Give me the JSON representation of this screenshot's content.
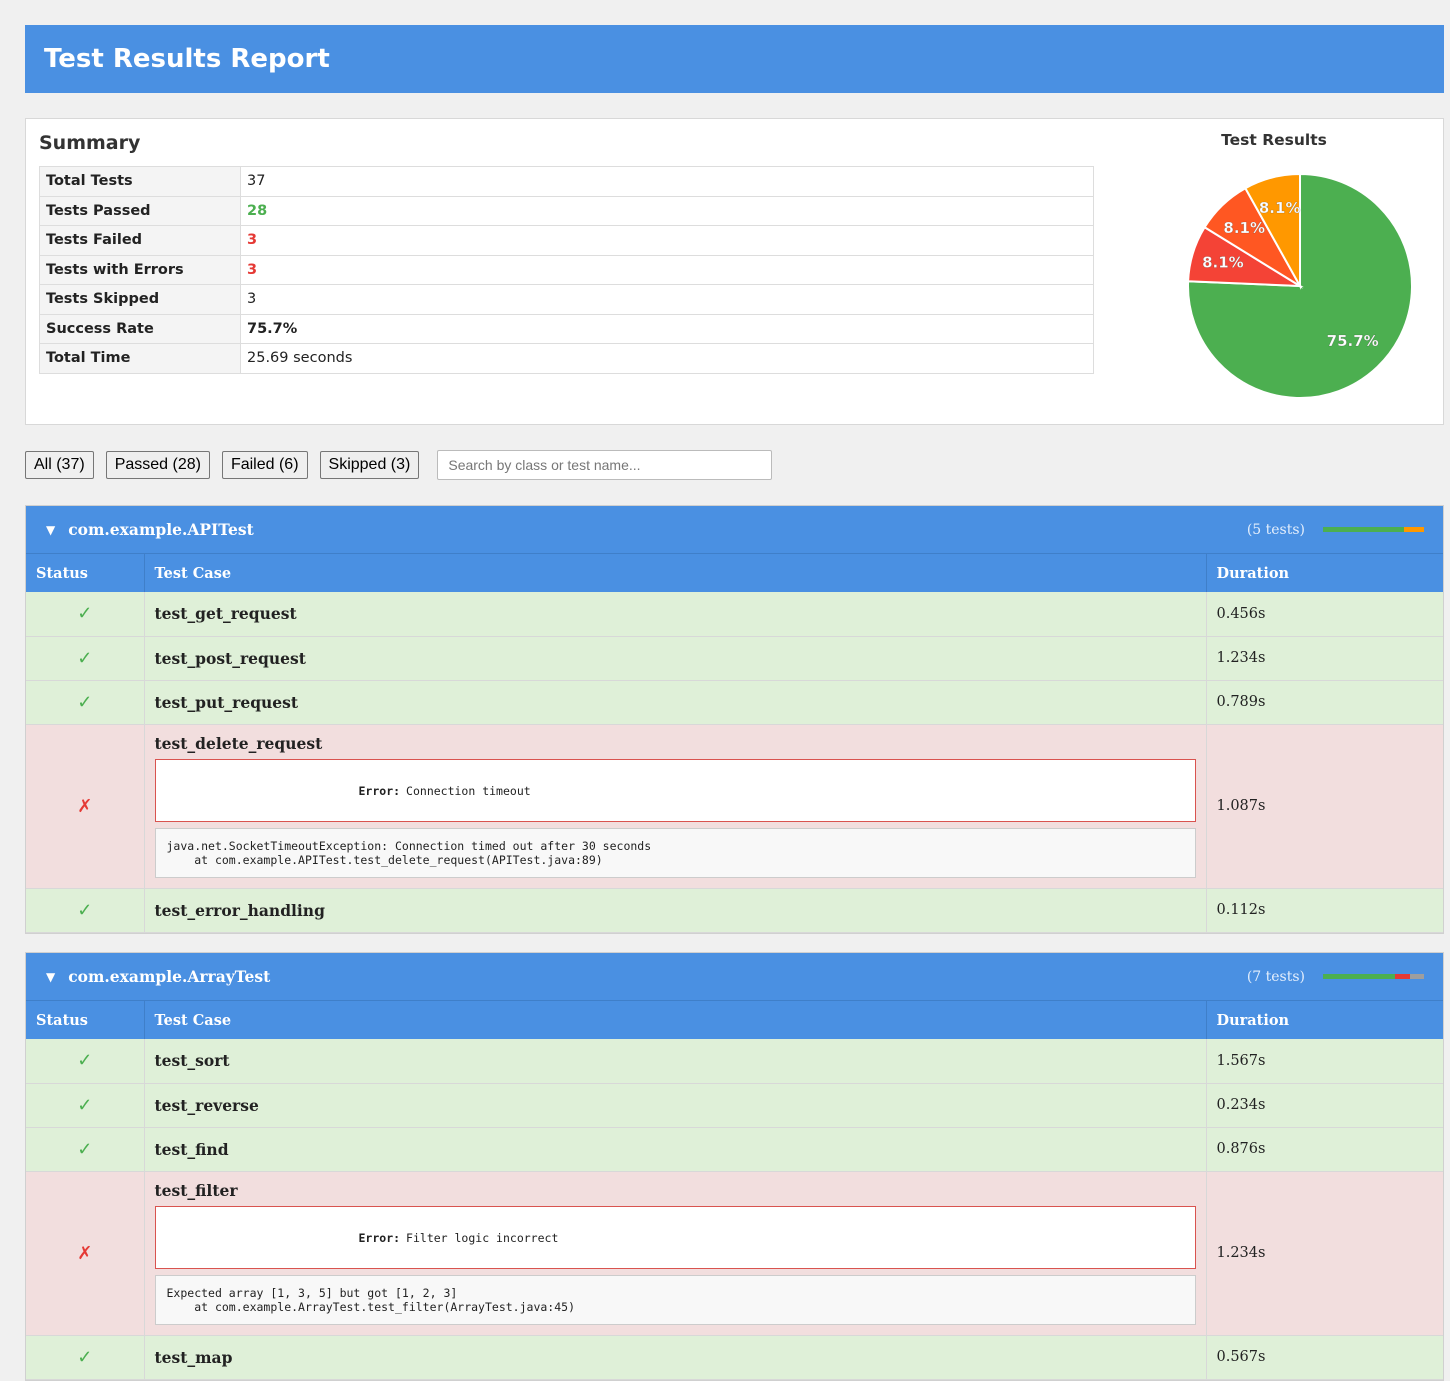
{
  "header": {
    "title": "Test Results Report"
  },
  "summary": {
    "title": "Summary",
    "rows": {
      "total": {
        "label": "Total Tests",
        "value": "37"
      },
      "passed": {
        "label": "Tests Passed",
        "value": "28"
      },
      "failed": {
        "label": "Tests Failed",
        "value": "3"
      },
      "errors": {
        "label": "Tests with Errors",
        "value": "3"
      },
      "skipped": {
        "label": "Tests Skipped",
        "value": "3"
      },
      "rate": {
        "label": "Success Rate",
        "value": "75.7%"
      },
      "time": {
        "label": "Total Time",
        "value": "25.69 seconds"
      }
    }
  },
  "chart_data": {
    "type": "pie",
    "title": "Test Results",
    "values": [
      28,
      3,
      3,
      3
    ],
    "labels": [
      "75.7%",
      "8.1%",
      "8.1%",
      "8.1%"
    ],
    "colors": [
      "#4caf50",
      "#f44336",
      "#ff5722",
      "#ff9800"
    ]
  },
  "filters": {
    "all": "All (37)",
    "passed": "Passed (28)",
    "failed": "Failed (6)",
    "skipped": "Skipped (3)",
    "search_placeholder": "Search by class or test name..."
  },
  "columns": {
    "status": "Status",
    "test_case": "Test Case",
    "duration": "Duration"
  },
  "icons": {
    "pass": "✓",
    "fail": "✗",
    "expand": "▼"
  },
  "suites": [
    {
      "name": "com.example.APITest",
      "count": "(5 tests)",
      "progress": {
        "pass": 0.8,
        "fail": 0.0,
        "error": 0.2,
        "skip": 0.0
      },
      "tests": [
        {
          "name": "test_get_request",
          "duration": "0.456s"
        },
        {
          "name": "test_post_request",
          "duration": "1.234s"
        },
        {
          "name": "test_put_request",
          "duration": "0.789s"
        },
        {
          "name": "test_delete_request",
          "duration": "1.087s",
          "error_label": "Error:",
          "error_message": "Connection timeout",
          "trace": "java.net.SocketTimeoutException: Connection timed out after 30 seconds\n    at com.example.APITest.test_delete_request(APITest.java:89)"
        },
        {
          "name": "test_error_handling",
          "duration": "0.112s"
        }
      ]
    },
    {
      "name": "com.example.ArrayTest",
      "count": "(7 tests)",
      "progress": {
        "pass": 0.714,
        "fail": 0.143,
        "error": 0.0,
        "skip": 0.143
      },
      "tests": [
        {
          "name": "test_sort",
          "duration": "1.567s"
        },
        {
          "name": "test_reverse",
          "duration": "0.234s"
        },
        {
          "name": "test_find",
          "duration": "0.876s"
        },
        {
          "name": "test_filter",
          "duration": "1.234s",
          "error_label": "Error:",
          "error_message": "Filter logic incorrect",
          "trace": "Expected array [1, 3, 5] but got [1, 2, 3]\n    at com.example.ArrayTest.test_filter(ArrayTest.java:45)"
        },
        {
          "name": "test_map",
          "duration": "0.567s"
        }
      ]
    }
  ]
}
